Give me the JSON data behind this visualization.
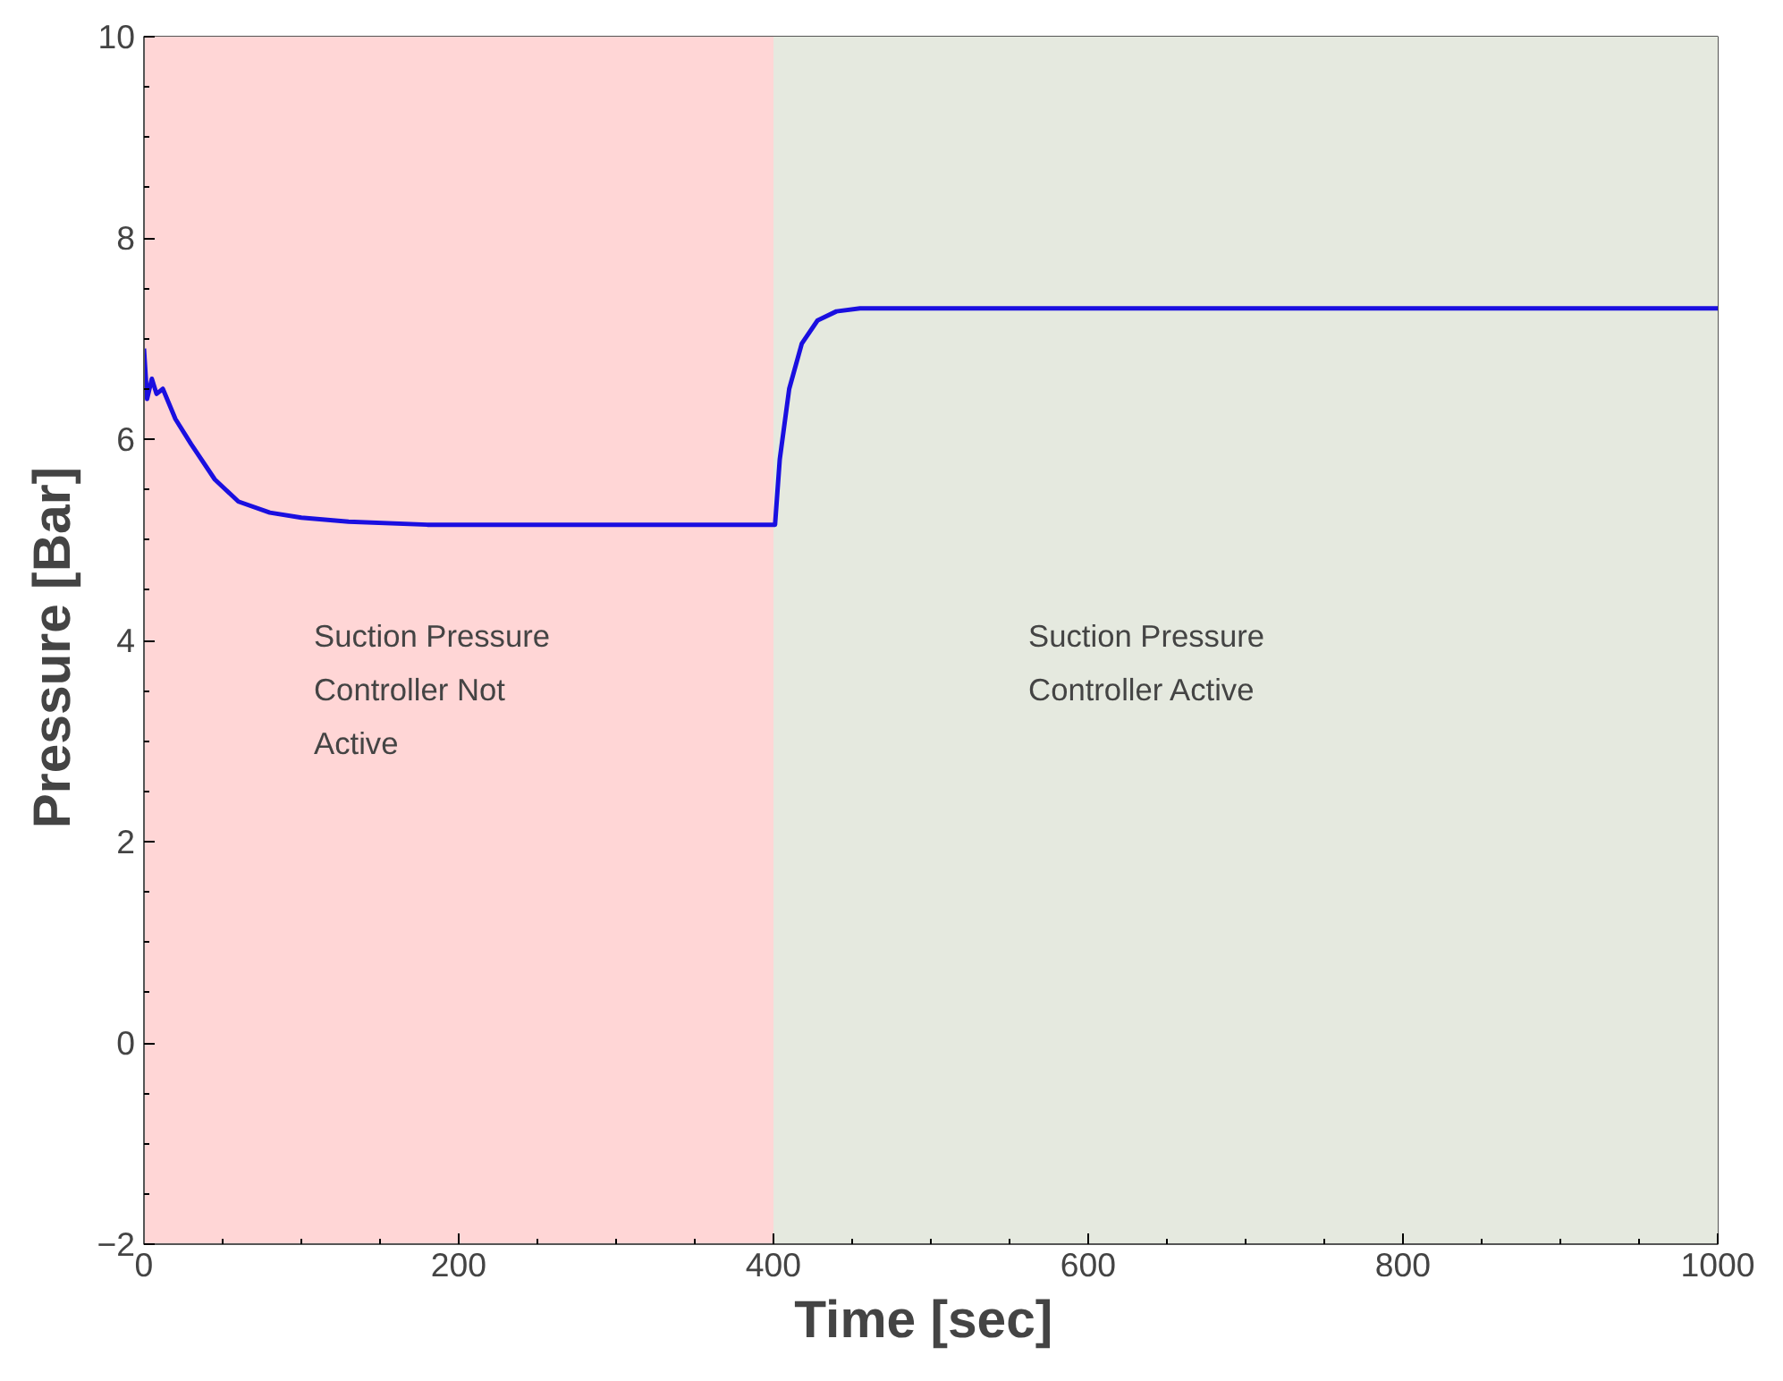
{
  "chart_data": {
    "type": "line",
    "xlabel": "Time  [sec]",
    "ylabel": "Pressure  [Bar]",
    "x": [
      0,
      2,
      5,
      8,
      12,
      20,
      30,
      45,
      60,
      80,
      100,
      130,
      180,
      250,
      399,
      401,
      404,
      410,
      418,
      428,
      440,
      455,
      1000
    ],
    "series": [
      {
        "color": "#1a0fe0",
        "values": [
          6.9,
          6.4,
          6.6,
          6.45,
          6.5,
          6.2,
          5.95,
          5.6,
          5.38,
          5.27,
          5.22,
          5.18,
          5.15,
          5.15,
          5.15,
          5.15,
          5.8,
          6.5,
          6.95,
          7.18,
          7.27,
          7.3,
          7.3
        ]
      }
    ],
    "xlim": [
      0,
      1000
    ],
    "xticks": [
      0,
      200,
      400,
      600,
      800,
      1000
    ],
    "ylim": [
      -2,
      10
    ],
    "yticks": [
      -2,
      0,
      2,
      4,
      6,
      8,
      10
    ],
    "bands": [
      {
        "axis": "x",
        "from": 0,
        "to": 400,
        "label": "Suction Pressure\nController Not\nActive",
        "color": "#ffd6d6"
      },
      {
        "axis": "x",
        "from": 400,
        "to": 1000,
        "label": "Suction Pressure\nController Active",
        "color": "#e5e9df"
      }
    ]
  }
}
